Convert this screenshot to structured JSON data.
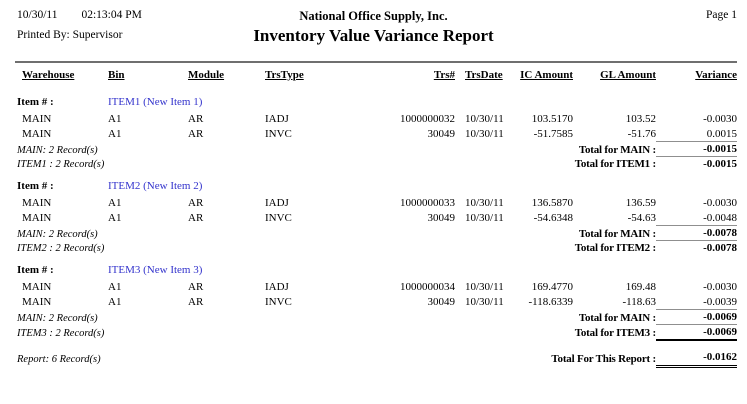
{
  "header": {
    "date": "10/30/11",
    "time": "02:13:04 PM",
    "printed_by": "Printed By: Supervisor",
    "company": "National Office Supply, Inc.",
    "title": "Inventory Value Variance Report",
    "page_label": "Page 1"
  },
  "table": {
    "columns": {
      "warehouse": "Warehouse",
      "bin": "Bin",
      "module": "Module",
      "trstype": "TrsType",
      "trsno": "Trs#",
      "trsdate": "TrsDate",
      "ic_amount": "IC Amount",
      "gl_amount": "GL Amount",
      "variance": "Variance"
    },
    "item_label": "Item # :",
    "groups": [
      {
        "item": "ITEM1 (New Item 1)",
        "rows": [
          {
            "warehouse": "MAIN",
            "bin": "A1",
            "module": "AR",
            "trstype": "IADJ",
            "trsno": "1000000032",
            "trsdate": "10/30/11",
            "ic": "103.5170",
            "gl": "103.52",
            "variance": "-0.0030"
          },
          {
            "warehouse": "MAIN",
            "bin": "A1",
            "module": "AR",
            "trstype": "INVC",
            "trsno": "30049",
            "trsdate": "10/30/11",
            "ic": "-51.7585",
            "gl": "-51.76",
            "variance": "0.0015"
          }
        ],
        "warehouse_summary": "MAIN: 2 Record(s)",
        "warehouse_total_label": "Total for MAIN :",
        "warehouse_total": "-0.0015",
        "item_summary": "ITEM1 : 2 Record(s)",
        "item_total_label": "Total for ITEM1 :",
        "item_total": "-0.0015"
      },
      {
        "item": "ITEM2 (New Item 2)",
        "rows": [
          {
            "warehouse": "MAIN",
            "bin": "A1",
            "module": "AR",
            "trstype": "IADJ",
            "trsno": "1000000033",
            "trsdate": "10/30/11",
            "ic": "136.5870",
            "gl": "136.59",
            "variance": "-0.0030"
          },
          {
            "warehouse": "MAIN",
            "bin": "A1",
            "module": "AR",
            "trstype": "INVC",
            "trsno": "30049",
            "trsdate": "10/30/11",
            "ic": "-54.6348",
            "gl": "-54.63",
            "variance": "-0.0048"
          }
        ],
        "warehouse_summary": "MAIN: 2 Record(s)",
        "warehouse_total_label": "Total for MAIN :",
        "warehouse_total": "-0.0078",
        "item_summary": "ITEM2 : 2 Record(s)",
        "item_total_label": "Total for ITEM2 :",
        "item_total": "-0.0078"
      },
      {
        "item": "ITEM3 (New Item 3)",
        "rows": [
          {
            "warehouse": "MAIN",
            "bin": "A1",
            "module": "AR",
            "trstype": "IADJ",
            "trsno": "1000000034",
            "trsdate": "10/30/11",
            "ic": "169.4770",
            "gl": "169.48",
            "variance": "-0.0030"
          },
          {
            "warehouse": "MAIN",
            "bin": "A1",
            "module": "AR",
            "trstype": "INVC",
            "trsno": "30049",
            "trsdate": "10/30/11",
            "ic": "-118.6339",
            "gl": "-118.63",
            "variance": "-0.0039"
          }
        ],
        "warehouse_summary": "MAIN: 2 Record(s)",
        "warehouse_total_label": "Total for MAIN :",
        "warehouse_total": "-0.0069",
        "item_summary": "ITEM3 : 2 Record(s)",
        "item_total_label": "Total for ITEM3 :",
        "item_total": "-0.0069"
      }
    ],
    "report_summary": "Report: 6 Record(s)",
    "report_total_label": "Total For This Report :",
    "report_total": "-0.0162"
  },
  "colors": {
    "item_blue": "#3333cc",
    "rule_gray": "#6f6f6f",
    "text": "#000000"
  }
}
